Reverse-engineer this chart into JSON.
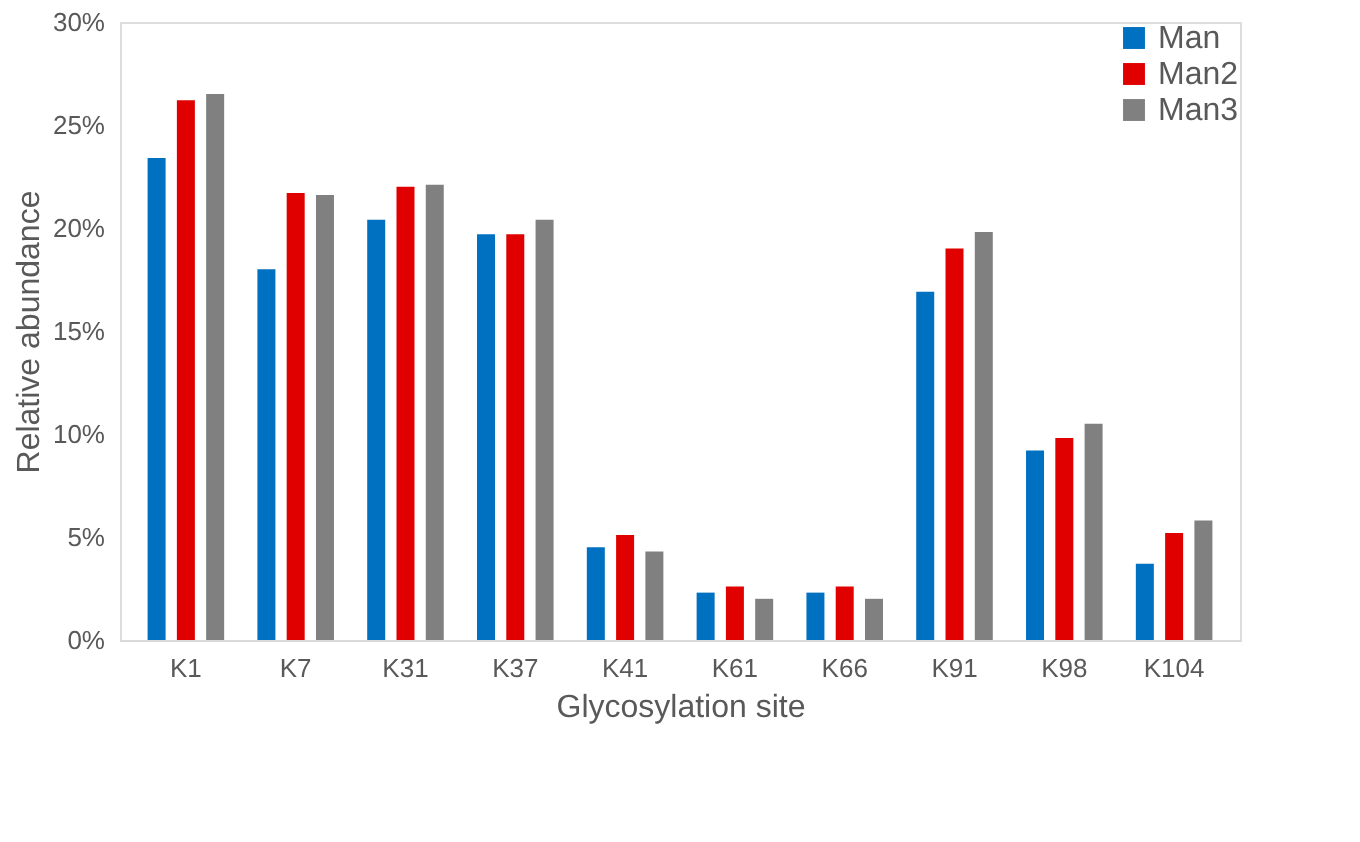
{
  "chart_data": {
    "type": "bar",
    "xlabel": "Glycosylation site",
    "ylabel": "Relative abundance",
    "categories": [
      "K1",
      "K7",
      "K31",
      "K37",
      "K41",
      "K61",
      "K66",
      "K91",
      "K98",
      "K104"
    ],
    "series": [
      {
        "name": "Man",
        "color": "#0070c0",
        "values": [
          23.4,
          18.0,
          20.4,
          19.7,
          4.5,
          2.3,
          2.3,
          16.9,
          9.2,
          3.7
        ]
      },
      {
        "name": "Man2",
        "color": "#e00000",
        "values": [
          26.2,
          21.7,
          22.0,
          19.7,
          5.1,
          2.6,
          2.6,
          19.0,
          9.8,
          5.2
        ]
      },
      {
        "name": "Man3",
        "color": "#808080",
        "values": [
          26.5,
          21.6,
          22.1,
          20.4,
          4.3,
          2.0,
          2.0,
          19.8,
          10.5,
          5.8
        ]
      }
    ],
    "ylim": [
      0,
      30
    ],
    "yticks": [
      {
        "value": 0,
        "label": "0%"
      },
      {
        "value": 5,
        "label": "5%"
      },
      {
        "value": 10,
        "label": "10%"
      },
      {
        "value": 15,
        "label": "15%"
      },
      {
        "value": 20,
        "label": "20%"
      },
      {
        "value": 25,
        "label": "25%"
      },
      {
        "value": 30,
        "label": "30%"
      }
    ],
    "grid": false,
    "legend": "top right"
  }
}
